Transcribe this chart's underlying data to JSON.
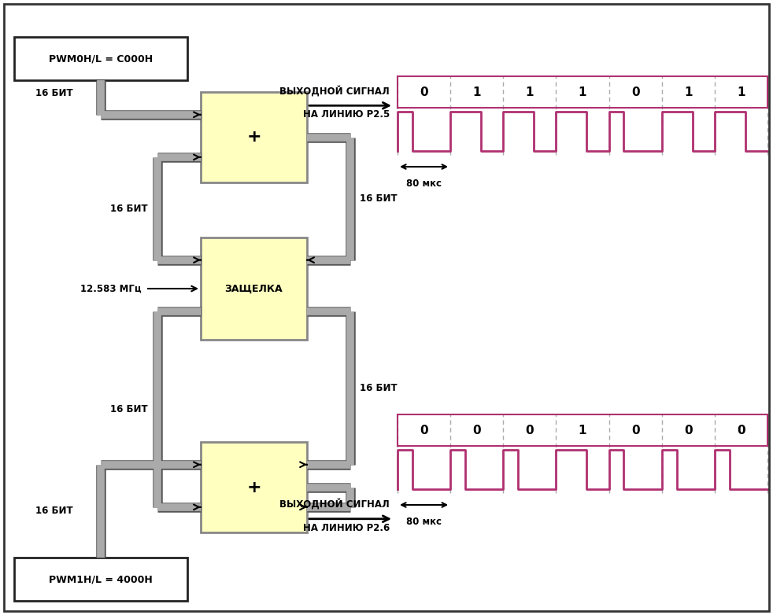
{
  "bg_color": "#ffffff",
  "block_fill": "#ffffc0",
  "block_edge": "#888888",
  "bus_color": "#aaaaaa",
  "arrow_color": "#000000",
  "signal_color": "#b03070",
  "grid_color": "#aaaaaa",
  "pwm0_label": "PWM0H/L = C000H",
  "pwm1_label": "PWM1H/L = 4000H",
  "latch_label": "ЗАЩЕЛКА",
  "adder_label": "+",
  "freq_label": "12.583 МГц",
  "bits_labels": [
    "16 БИТ",
    "16 БИТ",
    "16 БИТ",
    "16 БИТ",
    "16 БИТ",
    "16 БИТ"
  ],
  "out1_line1": "ВЫХОДНОЙ СИГНАЛ",
  "out1_line2": "НА ЛИНИЮ P2.5",
  "out2_line1": "ВЫХОДНОЙ СИГНАЛ",
  "out2_line2": "НА ЛИНИЮ P2.6",
  "timing1_label": "80 мкс",
  "timing2_label": "80 мкс",
  "bits1": [
    0,
    1,
    1,
    1,
    0,
    1,
    1
  ],
  "bits2": [
    0,
    0,
    0,
    1,
    0,
    0,
    0
  ]
}
